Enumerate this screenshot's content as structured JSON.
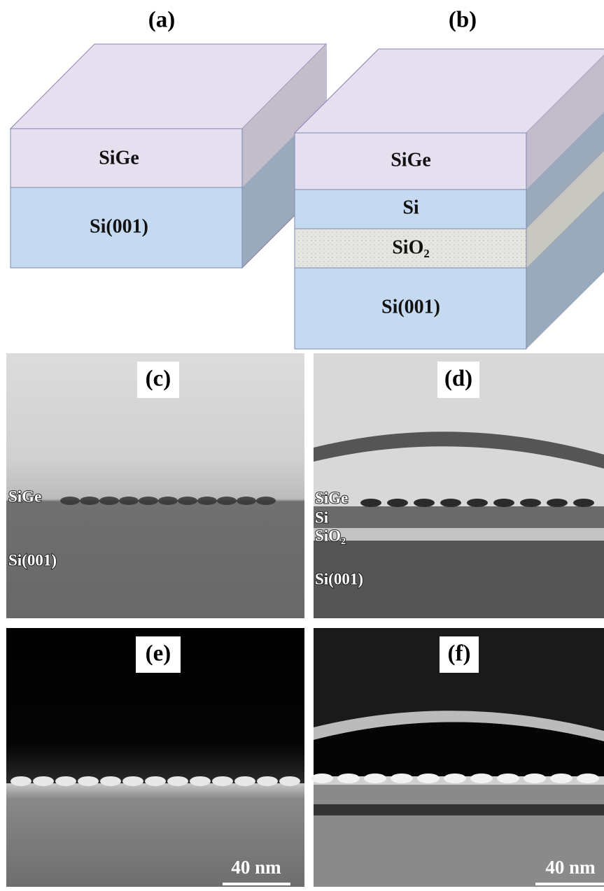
{
  "panel_a": {
    "label": "(a)",
    "layers": [
      "SiGe",
      "Si(001)"
    ]
  },
  "panel_b": {
    "label": "(b)",
    "layers": [
      "SiGe",
      "Si",
      "SiO₂",
      "Si(001)"
    ]
  },
  "panel_c": {
    "label": "(c)",
    "layers": [
      "SiGe",
      "Si(001)"
    ]
  },
  "panel_d": {
    "label": "(d)",
    "layers": [
      "SiGe",
      "Si",
      "SiO₂",
      "Si(001)"
    ]
  },
  "panel_e": {
    "label": "(e)",
    "scale_bar": "40 nm"
  },
  "panel_f": {
    "label": "(f)",
    "scale_bar": "40 nm"
  }
}
